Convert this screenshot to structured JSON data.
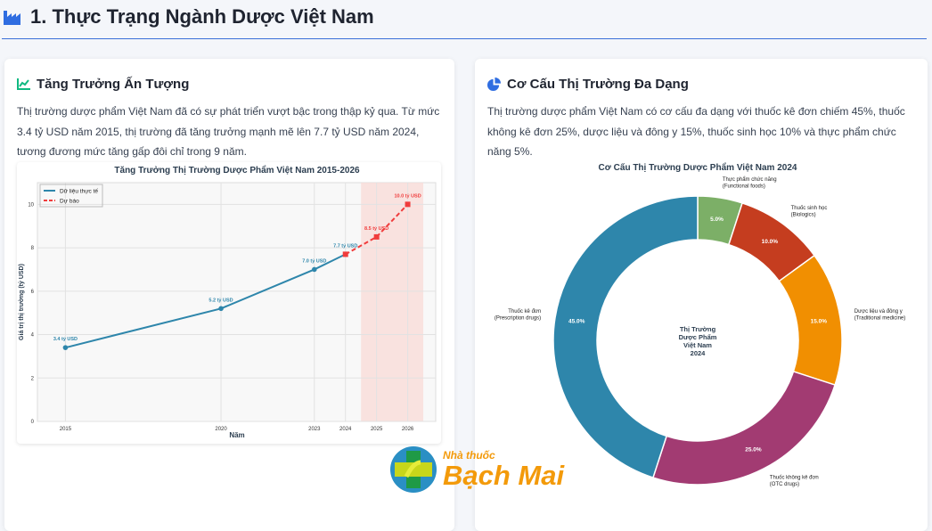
{
  "header": {
    "title": "1. Thực Trạng Ngành Dược Việt Nam",
    "icon": "factory-icon"
  },
  "growth_card": {
    "title": "Tăng Trưởng Ấn Tượng",
    "icon": "chart-line-icon",
    "text": "Thị trường dược phẩm Việt Nam đã có sự phát triển vượt bậc trong thập kỷ qua. Từ mức 3.4 tỷ USD năm 2015, thị trường đã tăng trưởng mạnh mẽ lên 7.7 tỷ USD năm 2024, tương đương mức tăng gấp đôi chỉ trong 9 năm."
  },
  "structure_card": {
    "title": "Cơ Cấu Thị Trường Đa Dạng",
    "icon": "chart-pie-icon",
    "text": "Thị trường dược phẩm Việt Nam có cơ cấu đa dạng với thuốc kê đơn chiếm 45%, thuốc không kê đơn 25%, dược liệu và đông y 15%, thuốc sinh học 10% và thực phẩm chức năng 5%."
  },
  "chart_data": [
    {
      "type": "line",
      "title": "Tăng Trưởng Thị Trường Dược Phẩm Việt Nam 2015-2026",
      "xlabel": "Năm",
      "ylabel": "Giá trị thị trường (tỷ USD)",
      "ylim": [
        0,
        11
      ],
      "yticks": [
        0,
        2,
        4,
        6,
        8,
        10
      ],
      "xticks": [
        2015,
        2020,
        2023,
        2024,
        2025,
        2026
      ],
      "grid": true,
      "legend": "top-left",
      "forecast_region": [
        2024.5,
        2026.5
      ],
      "series": [
        {
          "name": "Dữ liệu thực tế",
          "color": "#2e86ab",
          "x": [
            2015,
            2020,
            2023,
            2024
          ],
          "y": [
            3.4,
            5.2,
            7.0,
            7.7
          ],
          "labels": [
            "3.4 tỷ USD",
            "5.2 tỷ USD",
            "7.0 tỷ USD",
            "7.7 tỷ USD"
          ]
        },
        {
          "name": "Dự báo",
          "color": "#f03c3c",
          "x": [
            2024,
            2025,
            2026
          ],
          "y": [
            7.7,
            8.5,
            10.0
          ],
          "labels": [
            "",
            "8.5 tỷ USD",
            "10.0 tỷ USD"
          ]
        }
      ]
    },
    {
      "type": "pie",
      "title": "Cơ Cấu Thị Trường Dược Phẩm Việt Nam 2024",
      "center_label": [
        "Thị Trường",
        "Dược Phẩm",
        "Việt Nam",
        "2024"
      ],
      "slices": [
        {
          "label": [
            "Thực phẩm chức năng",
            "(Functional foods)"
          ],
          "value": 5,
          "pct": "5.0%",
          "color": "#7caf67"
        },
        {
          "label": [
            "Thuốc sinh học",
            "(Biologics)"
          ],
          "value": 10,
          "pct": "10.0%",
          "color": "#c53d1f"
        },
        {
          "label": [
            "Dược liệu và đông y",
            "(Traditional medicine)"
          ],
          "value": 15,
          "pct": "15.0%",
          "color": "#f18f01"
        },
        {
          "label": [
            "Thuốc không kê đơn",
            "(OTC drugs)"
          ],
          "value": 25,
          "pct": "25.0%",
          "color": "#a23b72"
        },
        {
          "label": [
            "Thuốc kê đơn",
            "(Prescription drugs)"
          ],
          "value": 45,
          "pct": "45.0%",
          "color": "#2e86ab"
        }
      ]
    }
  ],
  "watermark": {
    "line1": "Nhà thuốc",
    "line2": "Bạch Mai"
  }
}
